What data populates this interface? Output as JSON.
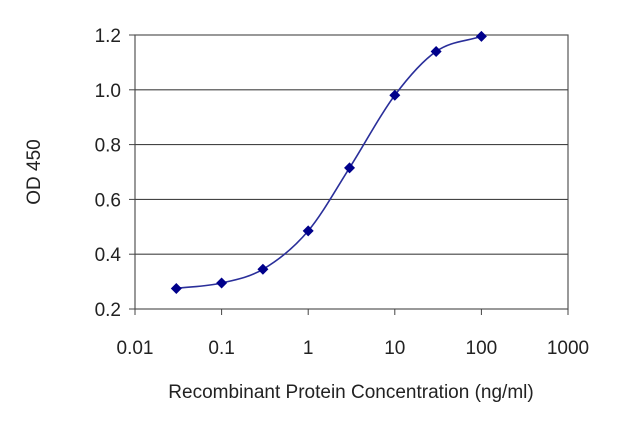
{
  "chart_data": {
    "type": "line",
    "title": "",
    "xlabel": "Recombinant Protein Concentration (ng/ml)",
    "ylabel": "OD 450",
    "x_scale": "log",
    "xlim": [
      0.01,
      1000
    ],
    "ylim": [
      0.2,
      1.2
    ],
    "x_ticks": [
      "0.01",
      "0.1",
      "1",
      "10",
      "100",
      "1000"
    ],
    "y_ticks": [
      "0.2",
      "0.4",
      "0.6",
      "0.8",
      "1.0",
      "1.2"
    ],
    "grid": "horizontal",
    "legend": "none",
    "series": [
      {
        "x": [
          0.03,
          0.1,
          0.3,
          1,
          3,
          10,
          30,
          100
        ],
        "y": [
          0.275,
          0.295,
          0.345,
          0.485,
          0.715,
          0.98,
          1.14,
          1.195
        ],
        "color": "#00008b"
      }
    ]
  }
}
